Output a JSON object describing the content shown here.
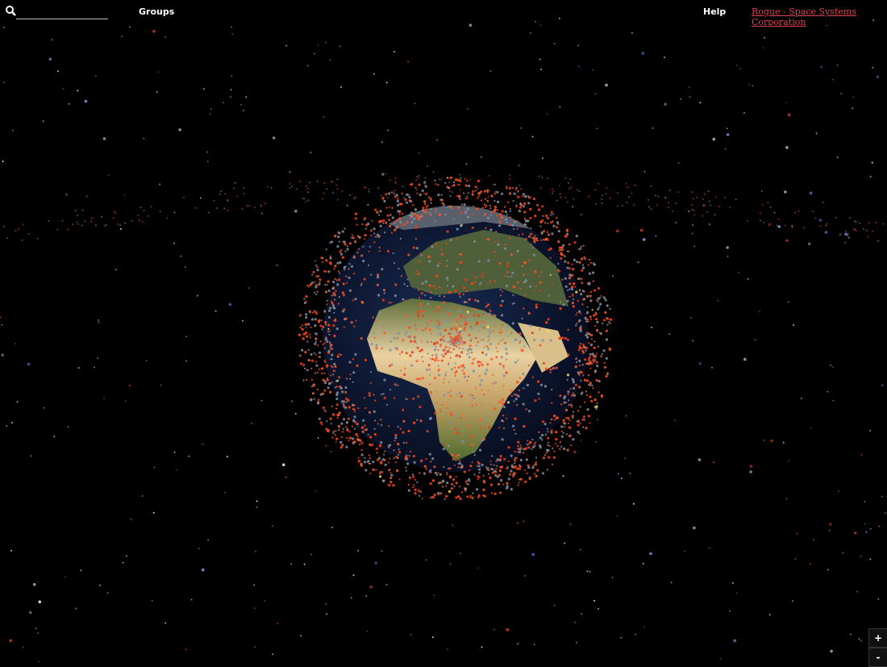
{
  "menu": {
    "groups": "Groups",
    "help": "Help",
    "link": "Rogue - Space Systems Corporation"
  },
  "zoom": {
    "in": "+",
    "out": "-"
  }
}
